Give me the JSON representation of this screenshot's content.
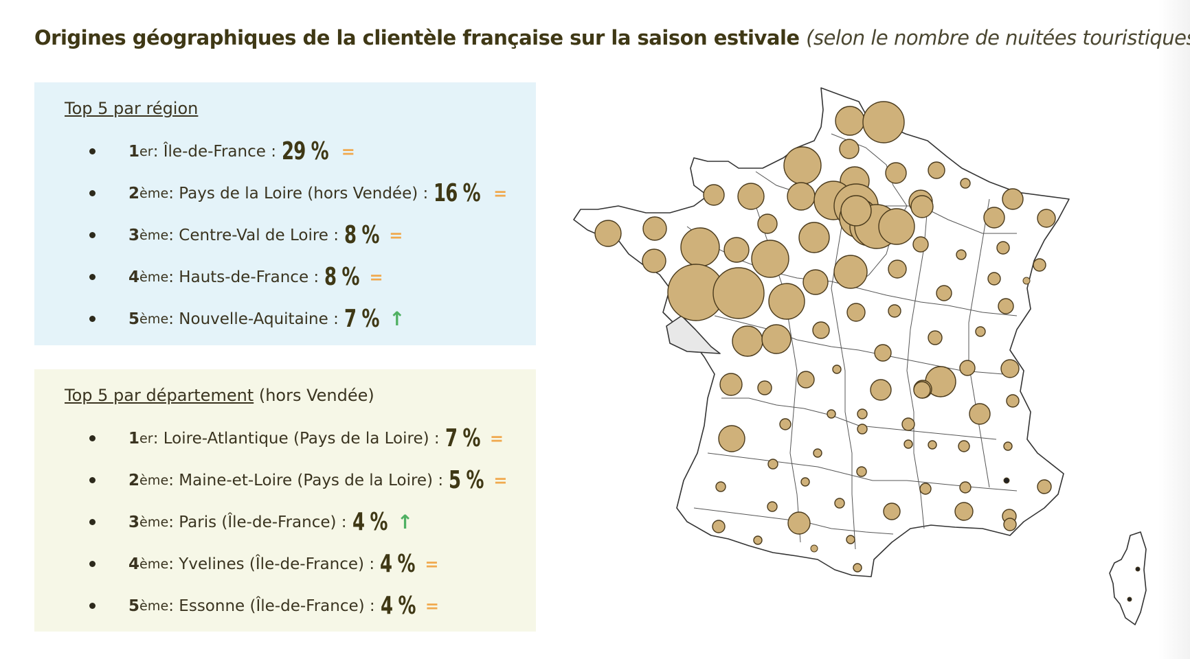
{
  "title": "Origines géographiques de la clientèle française sur la saison estivale",
  "subtitle": "(selon le nombre de nuitées touristiques)",
  "region_panel": {
    "heading": "Top 5 par région",
    "items": [
      {
        "rank": "1",
        "suffix": "er",
        "label": " : Île-de-France : ",
        "pct": "29 %",
        "trend": "=",
        "trend_type": "eq"
      },
      {
        "rank": "2",
        "suffix": "ème",
        "label": " : Pays de la Loire (hors Vendée) : ",
        "pct": "16 %",
        "trend": "=",
        "trend_type": "eq"
      },
      {
        "rank": "3",
        "suffix": "ème",
        "label": " : Centre-Val de Loire : ",
        "pct": "8 %",
        "trend": "=",
        "trend_type": "eq"
      },
      {
        "rank": "4",
        "suffix": "ème",
        "label": " : Hauts-de-France : ",
        "pct": "8 %",
        "trend": "=",
        "trend_type": "eq"
      },
      {
        "rank": "5",
        "suffix": "ème",
        "label": " : Nouvelle-Aquitaine : ",
        "pct": "7 %",
        "trend": "↑",
        "trend_type": "up"
      }
    ]
  },
  "dept_panel": {
    "heading": "Top 5 par département",
    "heading_note": " (hors Vendée)",
    "items": [
      {
        "rank": "1",
        "suffix": "er",
        "label": " : Loire-Atlantique (Pays de la Loire) : ",
        "pct": "7 %",
        "trend": "=",
        "trend_type": "eq"
      },
      {
        "rank": "2",
        "suffix": "ème",
        "label": " : Maine-et-Loire (Pays de la Loire) : ",
        "pct": "5 %",
        "trend": "=",
        "trend_type": "eq"
      },
      {
        "rank": "3",
        "suffix": "ème",
        "label": " : Paris (Île-de-France) : ",
        "pct": "4 %",
        "trend": "↑",
        "trend_type": "up"
      },
      {
        "rank": "4",
        "suffix": "ème",
        "label": " : Yvelines (Île-de-France) : ",
        "pct": "4 %",
        "trend": "=",
        "trend_type": "eq"
      },
      {
        "rank": "5",
        "suffix": "ème",
        "label": " : Essonne (Île-de-France) : ",
        "pct": "4 %",
        "trend": "=",
        "trend_type": "eq"
      }
    ]
  },
  "map": {
    "type": "proportional-symbol map of France by département",
    "bubble_fill": "#cfb17a",
    "bubble_stroke": "#4a3a1c",
    "excluded_fill": "#e8e8e8",
    "excluded_department": "Vendée"
  }
}
